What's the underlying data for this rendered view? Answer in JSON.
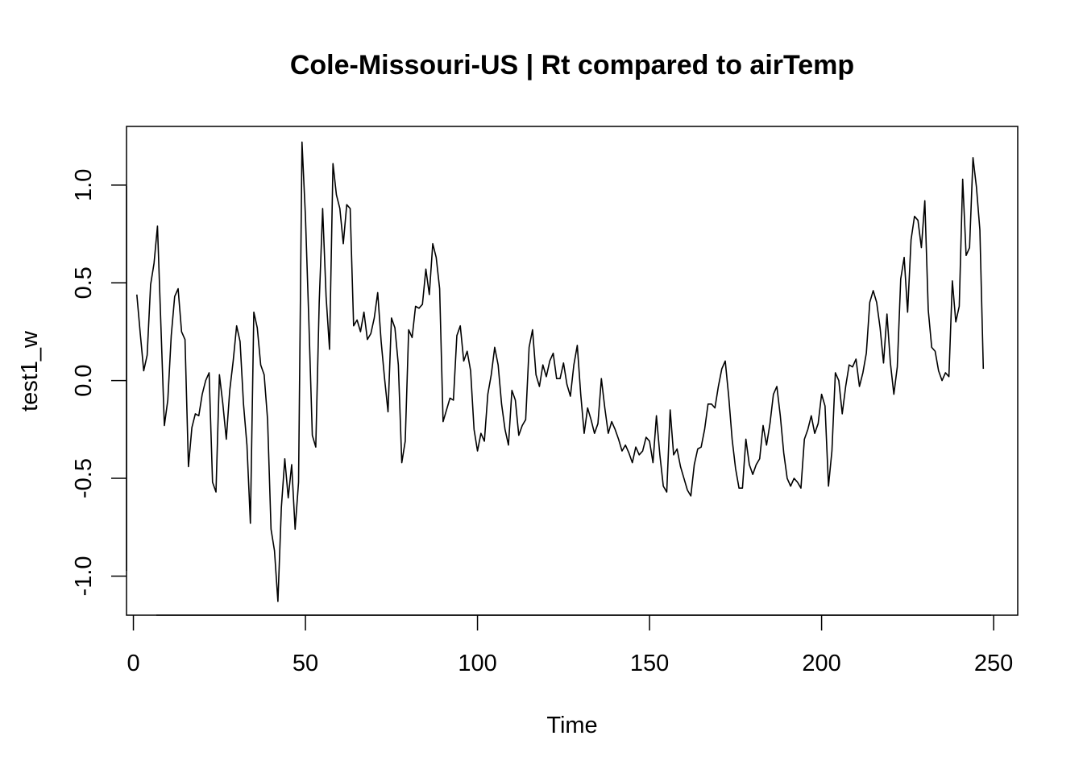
{
  "chart_data": {
    "type": "line",
    "title": "Cole-Missouri-US | Rt compared to airTemp",
    "xlabel": "Time",
    "ylabel": "test1_w",
    "xlim": [
      -2,
      257
    ],
    "ylim": [
      -1.2,
      1.3
    ],
    "x_ticks": [
      0,
      50,
      100,
      150,
      200,
      250
    ],
    "y_ticks": [
      -1.0,
      -0.5,
      0.0,
      0.5,
      1.0
    ],
    "x_tick_labels": [
      "0",
      "50",
      "100",
      "150",
      "200",
      "250"
    ],
    "y_tick_labels": [
      "-1.0",
      "-0.5",
      "0.0",
      "0.5",
      "1.0"
    ],
    "grid": false,
    "line_color": "#000000",
    "series": [
      {
        "x_start": 1,
        "values": [
          0.44,
          0.24,
          0.05,
          0.13,
          0.49,
          0.6,
          0.79,
          0.28,
          -0.23,
          -0.1,
          0.23,
          0.43,
          0.47,
          0.25,
          0.21,
          -0.44,
          -0.24,
          -0.17,
          -0.18,
          -0.07,
          0.0,
          0.04,
          -0.52,
          -0.57,
          0.03,
          -0.12,
          -0.3,
          -0.05,
          0.1,
          0.28,
          0.2,
          -0.12,
          -0.33,
          -0.73,
          0.35,
          0.27,
          0.08,
          0.03,
          -0.2,
          -0.76,
          -0.87,
          -1.13,
          -0.65,
          -0.4,
          -0.6,
          -0.43,
          -0.76,
          -0.52,
          1.22,
          0.84,
          0.3,
          -0.28,
          -0.34,
          0.4,
          0.88,
          0.43,
          0.16,
          1.11,
          0.95,
          0.88,
          0.7,
          0.9,
          0.88,
          0.28,
          0.31,
          0.25,
          0.35,
          0.21,
          0.24,
          0.32,
          0.45,
          0.2,
          0.01,
          -0.16,
          0.32,
          0.27,
          0.08,
          -0.42,
          -0.31,
          0.26,
          0.22,
          0.38,
          0.37,
          0.39,
          0.57,
          0.44,
          0.7,
          0.63,
          0.47,
          -0.21,
          -0.15,
          -0.09,
          -0.1,
          0.23,
          0.28,
          0.1,
          0.15,
          0.05,
          -0.25,
          -0.36,
          -0.27,
          -0.31,
          -0.07,
          0.03,
          0.17,
          0.08,
          -0.12,
          -0.25,
          -0.33,
          -0.05,
          -0.1,
          -0.28,
          -0.23,
          -0.2,
          0.17,
          0.26,
          0.03,
          -0.03,
          0.08,
          0.02,
          0.1,
          0.14,
          0.01,
          0.01,
          0.09,
          -0.02,
          -0.08,
          0.08,
          0.18,
          -0.07,
          -0.27,
          -0.14,
          -0.2,
          -0.27,
          -0.22,
          0.01,
          -0.14,
          -0.27,
          -0.21,
          -0.25,
          -0.3,
          -0.36,
          -0.33,
          -0.37,
          -0.42,
          -0.34,
          -0.38,
          -0.36,
          -0.29,
          -0.31,
          -0.42,
          -0.18,
          -0.38,
          -0.54,
          -0.57,
          -0.15,
          -0.38,
          -0.35,
          -0.44,
          -0.5,
          -0.56,
          -0.59,
          -0.43,
          -0.35,
          -0.34,
          -0.25,
          -0.12,
          -0.12,
          -0.14,
          -0.03,
          0.06,
          0.1,
          -0.08,
          -0.3,
          -0.45,
          -0.55,
          -0.55,
          -0.3,
          -0.43,
          -0.48,
          -0.43,
          -0.4,
          -0.23,
          -0.33,
          -0.22,
          -0.07,
          -0.03,
          -0.18,
          -0.37,
          -0.5,
          -0.54,
          -0.5,
          -0.52,
          -0.55,
          -0.3,
          -0.25,
          -0.18,
          -0.27,
          -0.22,
          -0.07,
          -0.13,
          -0.54,
          -0.36,
          0.04,
          0.0,
          -0.17,
          -0.03,
          0.08,
          0.07,
          0.11,
          -0.03,
          0.04,
          0.14,
          0.4,
          0.46,
          0.4,
          0.27,
          0.09,
          0.34,
          0.09,
          -0.07,
          0.07,
          0.52,
          0.63,
          0.35,
          0.72,
          0.84,
          0.82,
          0.68,
          0.92,
          0.36,
          0.17,
          0.15,
          0.05,
          0.0,
          0.04,
          0.02,
          0.51,
          0.3,
          0.38,
          1.03,
          0.64,
          0.68,
          1.14,
          0.99,
          0.77,
          0.06
        ]
      }
    ]
  }
}
